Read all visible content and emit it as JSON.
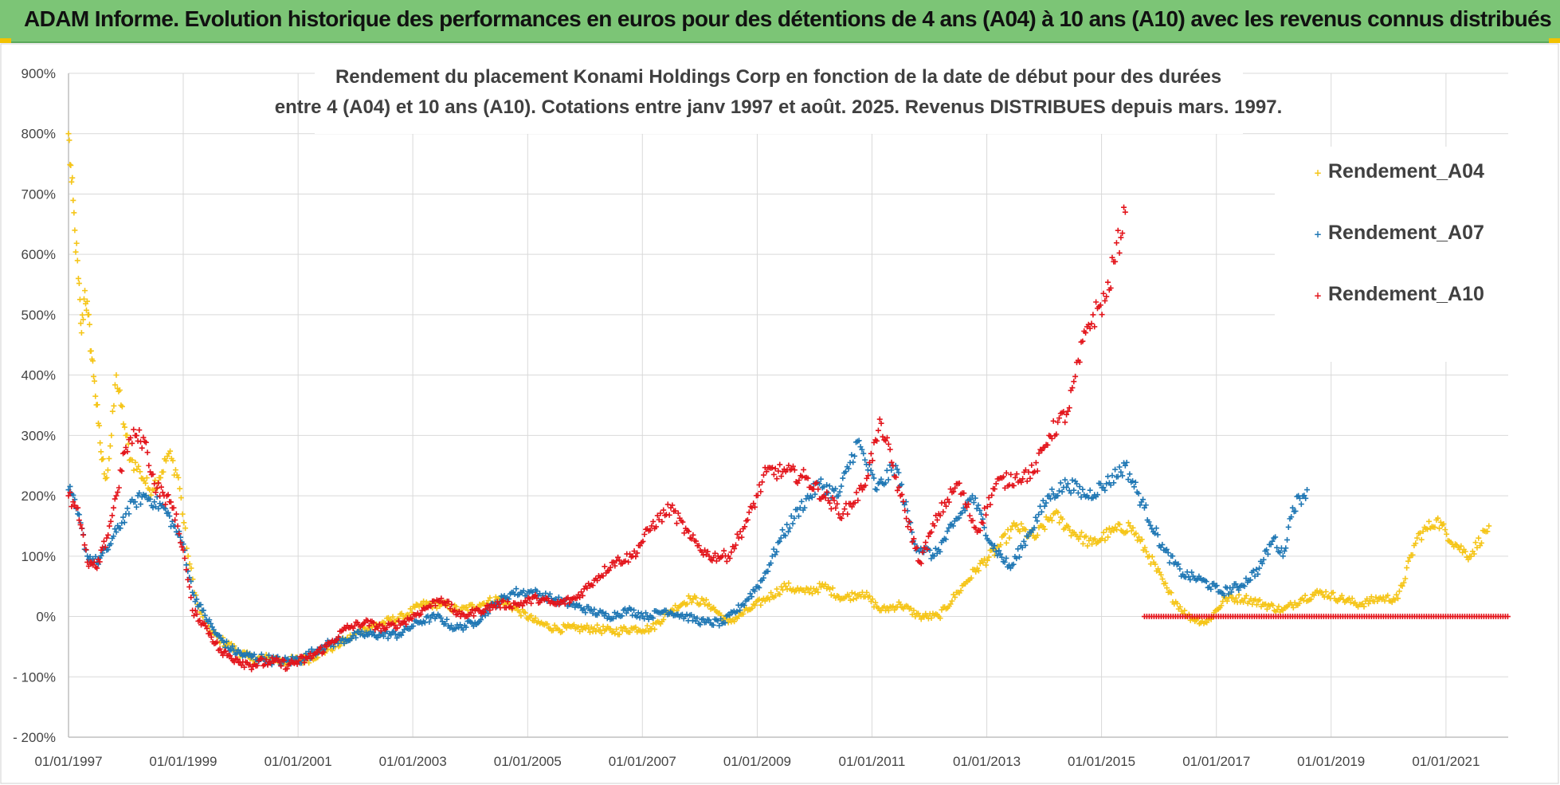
{
  "banner": {
    "title": "ADAM Informe. Evolution historique des performances en euros pour des détentions de 4 ans (A04) à 10 ans (A10) avec les revenus connus distribués"
  },
  "chart_data": {
    "type": "scatter",
    "title_lines": [
      "Rendement du placement Konami Holdings Corp en fonction de la date de début pour des durées",
      "entre 4 (A04) et 10 ans (A10). Cotations entre janv 1997 et août. 2025. Revenus DISTRIBUES depuis mars. 1997."
    ],
    "x_tick_labels": [
      "01/01/1997",
      "01/01/1999",
      "01/01/2001",
      "01/01/2003",
      "01/01/2005",
      "01/01/2007",
      "01/01/2009",
      "01/01/2011",
      "01/01/2013",
      "01/01/2015",
      "01/01/2017",
      "01/01/2019",
      "01/01/2021"
    ],
    "xlim": [
      "1997-01-01",
      "2022-02-01"
    ],
    "y_tick_labels": [
      "900%",
      "800%",
      "700%",
      "600%",
      "500%",
      "400%",
      "300%",
      "200%",
      "100%",
      "0%",
      "- 100%",
      "- 200%"
    ],
    "ylim": [
      -200,
      900
    ],
    "grid": true,
    "legend_position": "top-right",
    "marker": "+",
    "series": [
      {
        "name": "Rendement_A04",
        "color": "#f5c518",
        "points": [
          [
            "1997-01-01",
            800
          ],
          [
            "1997-01-20",
            720
          ],
          [
            "1997-02-10",
            640
          ],
          [
            "1997-03-05",
            560
          ],
          [
            "1997-03-25",
            470
          ],
          [
            "1997-04-15",
            540
          ],
          [
            "1997-05-05",
            500
          ],
          [
            "1997-05-25",
            440
          ],
          [
            "1997-06-15",
            390
          ],
          [
            "1997-07-10",
            320
          ],
          [
            "1997-08-01",
            260
          ],
          [
            "1997-09-01",
            230
          ],
          [
            "1997-10-01",
            300
          ],
          [
            "1997-11-01",
            400
          ],
          [
            "1997-12-01",
            350
          ],
          [
            "1998-01-01",
            300
          ],
          [
            "1998-02-01",
            260
          ],
          [
            "1998-04-01",
            240
          ],
          [
            "1998-06-01",
            210
          ],
          [
            "1998-08-01",
            230
          ],
          [
            "1998-10-01",
            270
          ],
          [
            "1998-12-01",
            230
          ],
          [
            "1999-02-01",
            100
          ],
          [
            "1999-04-01",
            20
          ],
          [
            "1999-06-01",
            -20
          ],
          [
            "1999-09-01",
            -40
          ],
          [
            "1999-12-01",
            -55
          ],
          [
            "2000-03-01",
            -70
          ],
          [
            "2000-07-01",
            -70
          ],
          [
            "2000-11-01",
            -75
          ],
          [
            "2001-03-01",
            -70
          ],
          [
            "2001-07-01",
            -55
          ],
          [
            "2001-11-01",
            -40
          ],
          [
            "2002-03-01",
            -20
          ],
          [
            "2002-07-01",
            -10
          ],
          [
            "2002-11-01",
            0
          ],
          [
            "2003-03-01",
            20
          ],
          [
            "2003-07-01",
            20
          ],
          [
            "2003-11-01",
            10
          ],
          [
            "2004-03-01",
            20
          ],
          [
            "2004-07-01",
            30
          ],
          [
            "2004-11-01",
            10
          ],
          [
            "2005-03-01",
            -10
          ],
          [
            "2005-07-01",
            -20
          ],
          [
            "2005-11-01",
            -20
          ],
          [
            "2006-03-01",
            -20
          ],
          [
            "2006-07-01",
            -25
          ],
          [
            "2006-11-01",
            -20
          ],
          [
            "2007-03-01",
            -20
          ],
          [
            "2007-07-01",
            10
          ],
          [
            "2007-11-01",
            30
          ],
          [
            "2008-03-01",
            20
          ],
          [
            "2008-07-01",
            -10
          ],
          [
            "2008-11-01",
            10
          ],
          [
            "2009-03-01",
            30
          ],
          [
            "2009-07-01",
            50
          ],
          [
            "2009-11-01",
            40
          ],
          [
            "2010-03-01",
            50
          ],
          [
            "2010-07-01",
            30
          ],
          [
            "2010-11-01",
            40
          ],
          [
            "2011-03-01",
            10
          ],
          [
            "2011-07-01",
            20
          ],
          [
            "2011-11-01",
            0
          ],
          [
            "2012-03-01",
            0
          ],
          [
            "2012-07-01",
            40
          ],
          [
            "2012-11-01",
            80
          ],
          [
            "2013-03-01",
            110
          ],
          [
            "2013-07-01",
            150
          ],
          [
            "2013-11-01",
            130
          ],
          [
            "2014-03-01",
            170
          ],
          [
            "2014-07-01",
            140
          ],
          [
            "2014-11-01",
            120
          ],
          [
            "2015-03-01",
            140
          ],
          [
            "2015-07-01",
            150
          ],
          [
            "2015-11-01",
            100
          ],
          [
            "2016-03-01",
            40
          ],
          [
            "2016-07-01",
            0
          ],
          [
            "2016-11-01",
            -10
          ],
          [
            "2017-03-01",
            30
          ],
          [
            "2017-07-01",
            30
          ],
          [
            "2017-11-01",
            20
          ],
          [
            "2018-03-01",
            10
          ],
          [
            "2018-07-01",
            30
          ],
          [
            "2018-11-01",
            40
          ],
          [
            "2019-03-01",
            30
          ],
          [
            "2019-07-01",
            20
          ],
          [
            "2019-11-01",
            30
          ],
          [
            "2020-03-01",
            30
          ],
          [
            "2020-07-01",
            130
          ],
          [
            "2020-11-01",
            160
          ],
          [
            "2021-03-01",
            120
          ],
          [
            "2021-06-01",
            100
          ],
          [
            "2021-10-01",
            150
          ]
        ]
      },
      {
        "name": "Rendement_A07",
        "color": "#1f77b4",
        "points": [
          [
            "1997-01-01",
            210
          ],
          [
            "1997-03-01",
            170
          ],
          [
            "1997-05-01",
            100
          ],
          [
            "1997-07-01",
            90
          ],
          [
            "1997-09-01",
            110
          ],
          [
            "1997-11-01",
            140
          ],
          [
            "1998-01-01",
            170
          ],
          [
            "1998-03-01",
            190
          ],
          [
            "1998-05-01",
            200
          ],
          [
            "1998-07-01",
            190
          ],
          [
            "1998-09-01",
            180
          ],
          [
            "1998-11-01",
            150
          ],
          [
            "1999-01-01",
            120
          ],
          [
            "1999-03-01",
            40
          ],
          [
            "1999-05-01",
            10
          ],
          [
            "1999-08-01",
            -30
          ],
          [
            "1999-11-01",
            -55
          ],
          [
            "2000-02-01",
            -65
          ],
          [
            "2000-06-01",
            -70
          ],
          [
            "2000-10-01",
            -75
          ],
          [
            "2001-02-01",
            -70
          ],
          [
            "2001-06-01",
            -50
          ],
          [
            "2001-10-01",
            -40
          ],
          [
            "2002-02-01",
            -30
          ],
          [
            "2002-06-01",
            -30
          ],
          [
            "2002-10-01",
            -30
          ],
          [
            "2003-02-01",
            -10
          ],
          [
            "2003-06-01",
            0
          ],
          [
            "2003-10-01",
            -20
          ],
          [
            "2004-02-01",
            -10
          ],
          [
            "2004-06-01",
            20
          ],
          [
            "2004-10-01",
            40
          ],
          [
            "2005-02-01",
            40
          ],
          [
            "2005-06-01",
            30
          ],
          [
            "2005-10-01",
            20
          ],
          [
            "2006-02-01",
            10
          ],
          [
            "2006-06-01",
            0
          ],
          [
            "2006-10-01",
            10
          ],
          [
            "2007-02-01",
            0
          ],
          [
            "2007-06-01",
            10
          ],
          [
            "2007-10-01",
            0
          ],
          [
            "2008-02-01",
            -10
          ],
          [
            "2008-06-01",
            -10
          ],
          [
            "2008-10-01",
            20
          ],
          [
            "2009-02-01",
            60
          ],
          [
            "2009-06-01",
            130
          ],
          [
            "2009-10-01",
            180
          ],
          [
            "2010-02-01",
            220
          ],
          [
            "2010-06-01",
            200
          ],
          [
            "2010-10-01",
            290
          ],
          [
            "2011-02-01",
            210
          ],
          [
            "2011-06-01",
            250
          ],
          [
            "2011-10-01",
            120
          ],
          [
            "2012-02-01",
            100
          ],
          [
            "2012-06-01",
            150
          ],
          [
            "2012-10-01",
            200
          ],
          [
            "2013-02-01",
            120
          ],
          [
            "2013-06-01",
            80
          ],
          [
            "2013-10-01",
            140
          ],
          [
            "2014-02-01",
            200
          ],
          [
            "2014-06-01",
            220
          ],
          [
            "2014-10-01",
            200
          ],
          [
            "2015-02-01",
            220
          ],
          [
            "2015-06-01",
            250
          ],
          [
            "2015-10-01",
            180
          ],
          [
            "2016-02-01",
            110
          ],
          [
            "2016-06-01",
            70
          ],
          [
            "2016-10-01",
            60
          ],
          [
            "2017-02-01",
            40
          ],
          [
            "2017-06-01",
            50
          ],
          [
            "2017-10-01",
            80
          ],
          [
            "2018-01-01",
            130
          ],
          [
            "2018-03-01",
            100
          ],
          [
            "2018-05-01",
            180
          ],
          [
            "2018-08-01",
            210
          ]
        ]
      },
      {
        "name": "Rendement_A10",
        "color": "#e3141b",
        "points": [
          [
            "1997-01-01",
            200
          ],
          [
            "1997-03-01",
            180
          ],
          [
            "1997-05-01",
            90
          ],
          [
            "1997-07-01",
            80
          ],
          [
            "1997-09-01",
            130
          ],
          [
            "1997-11-01",
            200
          ],
          [
            "1998-01-01",
            280
          ],
          [
            "1998-03-01",
            300
          ],
          [
            "1998-05-01",
            290
          ],
          [
            "1998-07-01",
            220
          ],
          [
            "1998-09-01",
            200
          ],
          [
            "1998-11-01",
            180
          ],
          [
            "1999-01-01",
            110
          ],
          [
            "1999-03-01",
            10
          ],
          [
            "1999-06-01",
            -20
          ],
          [
            "1999-09-01",
            -60
          ],
          [
            "1999-12-01",
            -70
          ],
          [
            "2000-03-01",
            -80
          ],
          [
            "2000-07-01",
            -75
          ],
          [
            "2000-11-01",
            -80
          ],
          [
            "2001-03-01",
            -70
          ],
          [
            "2001-07-01",
            -50
          ],
          [
            "2001-11-01",
            -20
          ],
          [
            "2002-03-01",
            -10
          ],
          [
            "2002-07-01",
            -20
          ],
          [
            "2002-11-01",
            -10
          ],
          [
            "2003-03-01",
            10
          ],
          [
            "2003-07-01",
            30
          ],
          [
            "2003-11-01",
            0
          ],
          [
            "2004-03-01",
            10
          ],
          [
            "2004-07-01",
            20
          ],
          [
            "2004-11-01",
            20
          ],
          [
            "2005-03-01",
            30
          ],
          [
            "2005-07-01",
            20
          ],
          [
            "2005-11-01",
            30
          ],
          [
            "2006-03-01",
            60
          ],
          [
            "2006-07-01",
            90
          ],
          [
            "2006-11-01",
            100
          ],
          [
            "2007-03-01",
            150
          ],
          [
            "2007-07-01",
            180
          ],
          [
            "2007-11-01",
            130
          ],
          [
            "2008-03-01",
            100
          ],
          [
            "2008-07-01",
            100
          ],
          [
            "2008-11-01",
            160
          ],
          [
            "2009-03-01",
            240
          ],
          [
            "2009-07-01",
            240
          ],
          [
            "2009-11-01",
            230
          ],
          [
            "2010-03-01",
            200
          ],
          [
            "2010-07-01",
            170
          ],
          [
            "2010-11-01",
            210
          ],
          [
            "2011-03-01",
            320
          ],
          [
            "2011-07-01",
            200
          ],
          [
            "2011-11-01",
            90
          ],
          [
            "2012-03-01",
            170
          ],
          [
            "2012-07-01",
            220
          ],
          [
            "2012-11-01",
            140
          ],
          [
            "2013-03-01",
            220
          ],
          [
            "2013-07-01",
            230
          ],
          [
            "2013-11-01",
            240
          ],
          [
            "2014-02-01",
            300
          ],
          [
            "2014-06-01",
            340
          ],
          [
            "2014-10-01",
            480
          ],
          [
            "2015-02-01",
            530
          ],
          [
            "2015-06-01",
            670
          ]
        ]
      }
    ],
    "flat_segment": {
      "series": "Rendement_A10",
      "from": "2015-10-01",
      "to": "2022-02-01",
      "value": 0
    }
  }
}
